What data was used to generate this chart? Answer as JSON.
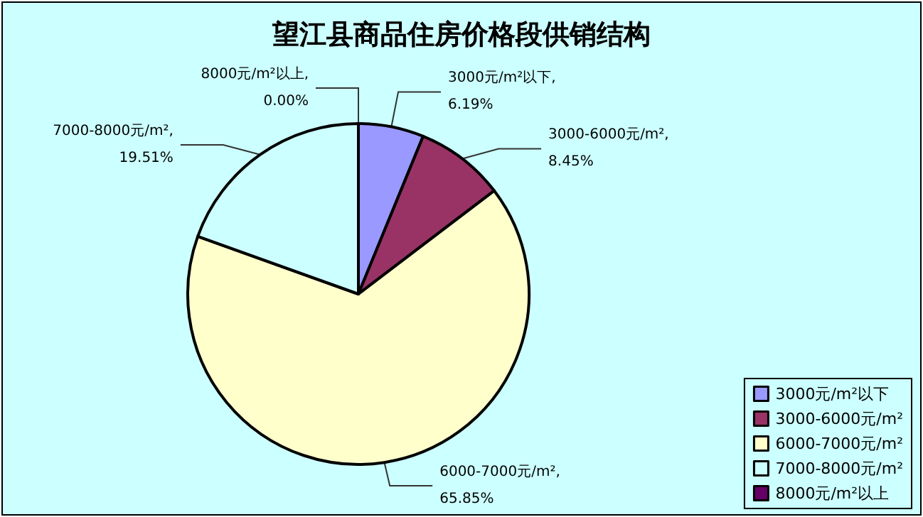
{
  "chart_data": {
    "type": "pie",
    "title": "望江县商品住房价格段供销结构",
    "categories": [
      "3000元/m²以下",
      "3000-6000元/m²",
      "6000-7000元/m²",
      "7000-8000元/m²",
      "8000元/m²以上"
    ],
    "values": [
      6.19,
      8.45,
      65.85,
      19.51,
      0
    ],
    "value_labels": [
      "3000元/m²以下, 6.19%",
      "3000-6000元/m², 8.45%",
      "6000-7000元/m², 65.85%",
      "7000-8000元/m², 19.51%",
      "8000元/m²以上, 0.00%"
    ],
    "colors": [
      "#9999ff",
      "#993366",
      "#ffffcc",
      "#ccffff",
      "#660066"
    ],
    "legend": "bottom right"
  }
}
